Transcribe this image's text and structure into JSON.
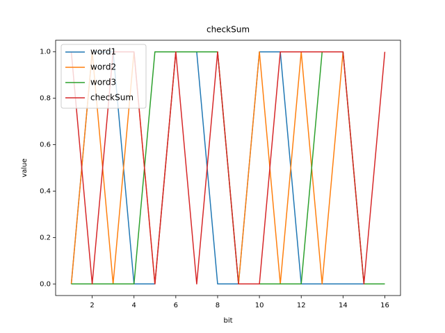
{
  "chart_data": {
    "type": "line",
    "title": "checkSum",
    "x_label": "bit",
    "y_label": "value",
    "x": [
      1,
      2,
      3,
      4,
      5,
      6,
      7,
      8,
      9,
      10,
      11,
      12,
      13,
      14,
      15,
      16
    ],
    "series": [
      {
        "name": "word1",
        "color": "#1f77b4",
        "values": [
          0,
          1,
          1,
          0,
          0,
          1,
          1,
          0,
          0,
          1,
          1,
          0,
          0,
          0,
          0,
          0
        ]
      },
      {
        "name": "word2",
        "color": "#ff7f0e",
        "values": [
          0,
          1,
          0,
          1,
          0,
          1,
          1,
          1,
          0,
          1,
          0,
          1,
          0,
          1,
          0,
          0
        ]
      },
      {
        "name": "word3",
        "color": "#2ca02c",
        "values": [
          0,
          0,
          0,
          0,
          1,
          1,
          1,
          1,
          0,
          0,
          0,
          0,
          1,
          1,
          0,
          0
        ]
      },
      {
        "name": "checkSum",
        "color": "#d62728",
        "values": [
          1,
          0,
          1,
          1,
          0,
          1,
          0,
          1,
          0,
          0,
          1,
          1,
          1,
          1,
          0,
          1
        ]
      }
    ],
    "xlim": [
      0.25,
      16.75
    ],
    "xticks": [
      2,
      4,
      6,
      8,
      10,
      12,
      14,
      16
    ],
    "ylim": [
      -0.05,
      1.05
    ],
    "yticks": [
      {
        "value": 0,
        "label": "0.0"
      },
      {
        "value": 0.2,
        "label": "0.2"
      },
      {
        "value": 0.4,
        "label": "0.4"
      },
      {
        "value": 0.6,
        "label": "0.6"
      },
      {
        "value": 0.8,
        "label": "0.8"
      },
      {
        "value": 1,
        "label": "1.0"
      }
    ],
    "legend": "upper left"
  }
}
